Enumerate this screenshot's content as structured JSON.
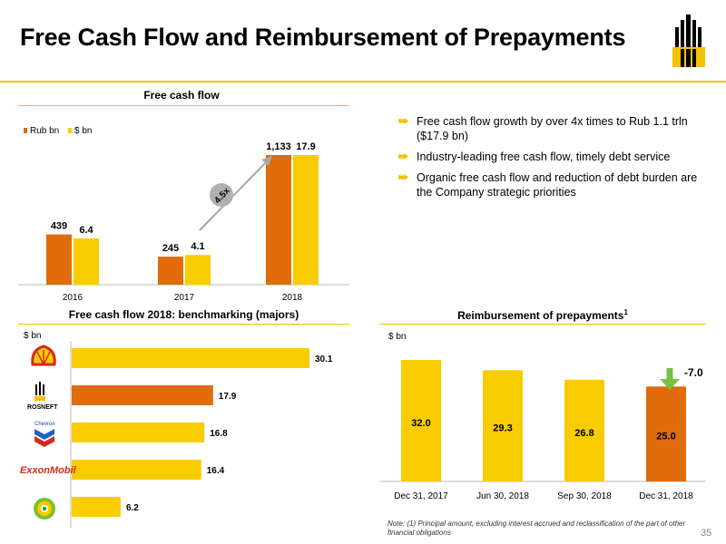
{
  "title": "Free Cash Flow and Reimbursement of Prepayments",
  "page_number": "35",
  "colors": {
    "orange": "#e06c0b",
    "yellow": "#f9cc00",
    "accent": "#f4c200",
    "gray": "#9a9a9a"
  },
  "bullets": [
    "Free cash flow growth by over 4x times to Rub 1.1 trln ($17.9 bn)",
    "Industry-leading free cash flow, timely debt service",
    "Organic free cash flow and reduction of debt burden are the Company strategic priorities"
  ],
  "note": "Note: (1) Principal amount, excluding interest accrued and reclassification of the part of other financial obligations",
  "logos": [
    "rosneft-logo",
    "shell-logo",
    "rosneft-small-logo",
    "chevron-logo",
    "exxonmobil-logo",
    "bp-logo"
  ],
  "logo_texts": {
    "rosneft": "ROSNEFT",
    "chevron": "Chevron",
    "exxon": "ExxonMobil"
  },
  "chart_data": [
    {
      "type": "bar",
      "title": "Free cash flow",
      "categories": [
        "2016",
        "2017",
        "2018"
      ],
      "series": [
        {
          "name": "Rub bn",
          "values": [
            439,
            245,
            1133
          ],
          "labels": [
            "439",
            "245",
            "1,133"
          ],
          "color": "#e06c0b"
        },
        {
          "name": "$ bn",
          "values": [
            6.4,
            4.1,
            17.9
          ],
          "labels": [
            "6.4",
            "4.1",
            "17.9"
          ],
          "color": "#f9cc00"
        }
      ],
      "annotation": "4.5x",
      "legend": "top-left"
    },
    {
      "type": "bar",
      "orientation": "horizontal",
      "title": "Free cash flow 2018: benchmarking (majors)",
      "unit_label": "$ bn",
      "categories": [
        "Shell",
        "Rosneft",
        "Chevron",
        "ExxonMobil",
        "BP"
      ],
      "values": [
        30.1,
        17.9,
        16.8,
        16.4,
        6.2
      ],
      "labels": [
        "30.1",
        "17.9",
        "16.8",
        "16.4",
        "6.2"
      ],
      "colors": [
        "#f9cc00",
        "#e06c0b",
        "#f9cc00",
        "#f9cc00",
        "#f9cc00"
      ]
    },
    {
      "type": "bar",
      "title": "Reimbursement of prepayments",
      "title_superscript": "1",
      "unit_label": "$ bn",
      "categories": [
        "Dec 31, 2017",
        "Jun 30, 2018",
        "Sep 30, 2018",
        "Dec 31, 2018"
      ],
      "values": [
        32.0,
        29.3,
        26.8,
        25.0
      ],
      "labels": [
        "32.0",
        "29.3",
        "26.8",
        "25.0"
      ],
      "colors": [
        "#f9cc00",
        "#f9cc00",
        "#f9cc00",
        "#e06c0b"
      ],
      "annotation": "-7.0"
    }
  ]
}
